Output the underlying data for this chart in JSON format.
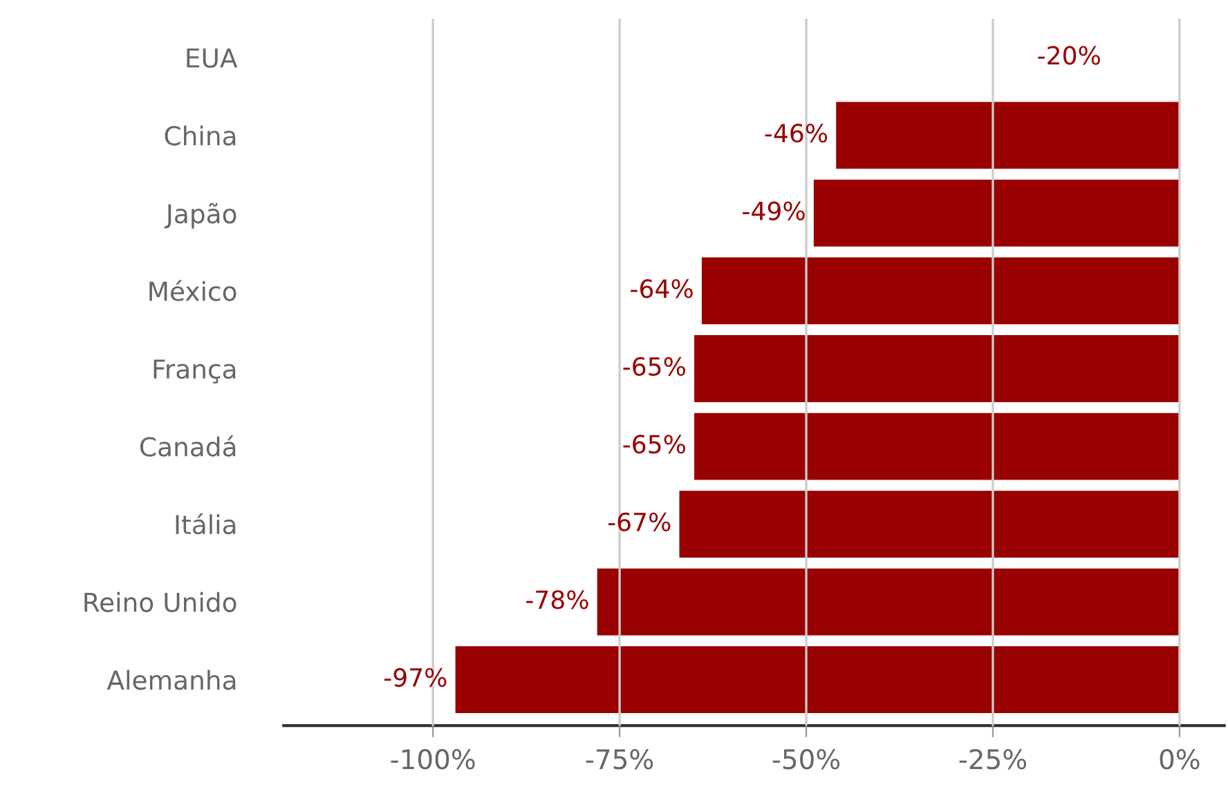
{
  "chart_data": {
    "type": "bar",
    "orientation": "horizontal",
    "categories": [
      "EUA",
      "China",
      "Japão",
      "México",
      "França",
      "Canadá",
      "Itália",
      "Reino Unido",
      "Alemanha"
    ],
    "values": [
      null,
      -46,
      -49,
      -64,
      -65,
      -65,
      -67,
      -78,
      -97
    ],
    "color": "#990000",
    "value_labels": [
      null,
      "-46%",
      "-49%",
      "-64%",
      "-65%",
      "-65%",
      "-67%",
      "-78%",
      "-97%"
    ],
    "annotations": [
      "-20%"
    ],
    "xlim": [
      -120,
      6
    ],
    "xticks": [
      {
        "value": -100,
        "label": "-100%"
      },
      {
        "value": -75,
        "label": "-75%"
      },
      {
        "value": -50,
        "label": "-50%"
      },
      {
        "value": -25,
        "label": "-25%"
      },
      {
        "value": 0,
        "label": "0%"
      }
    ],
    "grid": "x"
  }
}
